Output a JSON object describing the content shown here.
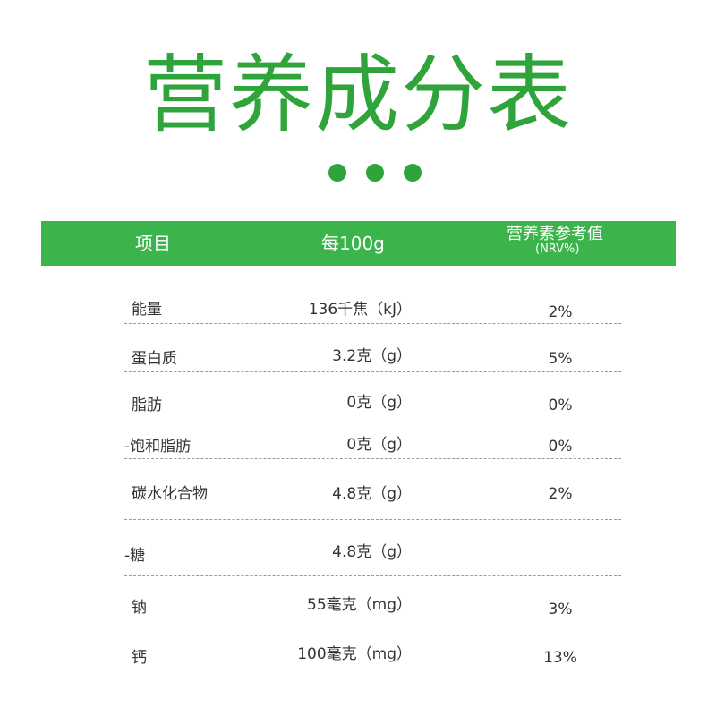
{
  "title": "营养成分表",
  "accent_color": "#3bb54b",
  "header": {
    "item": "项目",
    "per100g": "每100g",
    "nrv_label": "营养素参考值",
    "nrv_sub": "(NRV%)"
  },
  "rows": [
    {
      "name": "能量",
      "value": "136千焦（kJ）",
      "nrv": "2%"
    },
    {
      "name": "蛋白质",
      "value": "3.2克（g）",
      "nrv": "5%"
    },
    {
      "name": "脂肪",
      "value": "0克（g）",
      "nrv": "0%"
    },
    {
      "name": "-饱和脂肪",
      "value": "0克（g）",
      "nrv": "0%"
    },
    {
      "name": "碳水化合物",
      "value": "4.8克（g）",
      "nrv": "2%"
    },
    {
      "name": "-糖",
      "value": "4.8克（g）",
      "nrv": ""
    },
    {
      "name": "钠",
      "value": "55毫克（mg）",
      "nrv": "3%"
    },
    {
      "name": "钙",
      "value": "100毫克（mg）",
      "nrv": "13%"
    }
  ]
}
